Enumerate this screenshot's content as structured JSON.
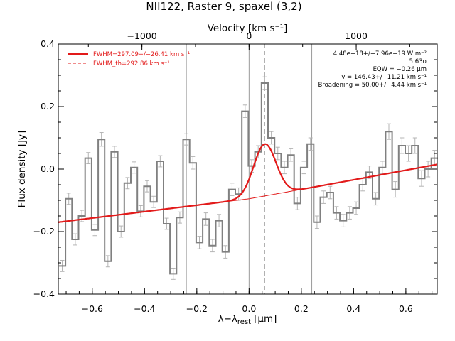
{
  "chart_data": {
    "type": "line",
    "title": "NII122, Raster 9, spaxel (3,2)",
    "xlabel": "λ−λ",
    "xlabel_sub": "rest",
    "xlabel_unit": "[μm]",
    "ylabel": "Flux density [Jy]",
    "top_axis_label": "Velocity [km s⁻¹]",
    "xlim": [
      -0.73,
      0.72
    ],
    "ylim": [
      -0.4,
      0.4
    ],
    "x_ticks": [
      -0.6,
      -0.4,
      -0.2,
      0.0,
      0.2,
      0.4,
      0.6
    ],
    "x_tick_labels": [
      "−0.6",
      "−0.4",
      "−0.2",
      "0.0",
      "0.2",
      "0.4",
      "0.6"
    ],
    "y_ticks": [
      -0.4,
      -0.2,
      0.0,
      0.2,
      0.4
    ],
    "y_tick_labels": [
      "−0.4",
      "−0.2",
      "0.0",
      "0.2",
      "0.4"
    ],
    "top_ticks": [
      -1000,
      0,
      1000
    ],
    "top_tick_labels": [
      "−1000",
      "0",
      "1000"
    ],
    "top_tick_positions_um": [
      -0.41,
      0.0,
      0.41
    ],
    "grey_vlines_um": [
      -0.24,
      0.0,
      0.24
    ],
    "dashed_vline_um": 0.06,
    "spectrum": {
      "x": [
        -0.715,
        -0.69,
        -0.665,
        -0.64,
        -0.615,
        -0.59,
        -0.565,
        -0.54,
        -0.515,
        -0.49,
        -0.465,
        -0.44,
        -0.415,
        -0.39,
        -0.365,
        -0.34,
        -0.315,
        -0.29,
        -0.265,
        -0.24,
        -0.215,
        -0.19,
        -0.165,
        -0.14,
        -0.115,
        -0.09,
        -0.065,
        -0.04,
        -0.015,
        0.01,
        0.035,
        0.06,
        0.085,
        0.11,
        0.135,
        0.16,
        0.185,
        0.21,
        0.235,
        0.26,
        0.285,
        0.31,
        0.335,
        0.36,
        0.385,
        0.41,
        0.435,
        0.46,
        0.485,
        0.51,
        0.535,
        0.56,
        0.585,
        0.61,
        0.635,
        0.66,
        0.685,
        0.71
      ],
      "y": [
        -0.31,
        -0.095,
        -0.225,
        -0.15,
        0.035,
        -0.195,
        0.095,
        -0.295,
        0.055,
        -0.2,
        -0.045,
        0.005,
        -0.135,
        -0.055,
        -0.105,
        0.025,
        -0.175,
        -0.335,
        -0.155,
        0.095,
        0.02,
        -0.235,
        -0.16,
        -0.245,
        -0.165,
        -0.265,
        -0.065,
        -0.08,
        0.185,
        0.01,
        0.055,
        0.275,
        0.1,
        0.05,
        0.005,
        0.045,
        -0.11,
        0.005,
        0.08,
        -0.17,
        -0.09,
        -0.075,
        -0.14,
        -0.165,
        -0.14,
        -0.125,
        -0.05,
        -0.01,
        -0.095,
        0.005,
        0.12,
        -0.065,
        0.075,
        0.05,
        0.075,
        -0.03,
        0.0,
        0.035
      ],
      "err": [
        0.018,
        0.018,
        0.018,
        0.018,
        0.018,
        0.018,
        0.022,
        0.018,
        0.018,
        0.018,
        0.018,
        0.018,
        0.018,
        0.018,
        0.018,
        0.018,
        0.018,
        0.018,
        0.018,
        0.018,
        0.02,
        0.02,
        0.02,
        0.02,
        0.02,
        0.02,
        0.02,
        0.02,
        0.02,
        0.02,
        0.02,
        0.02,
        0.02,
        0.02,
        0.02,
        0.02,
        0.02,
        0.02,
        0.02,
        0.02,
        0.02,
        0.02,
        0.02,
        0.02,
        0.02,
        0.02,
        0.02,
        0.02,
        0.02,
        0.02,
        0.025,
        0.025,
        0.025,
        0.025,
        0.025,
        0.025,
        0.025,
        0.025
      ]
    },
    "continuum": {
      "x": [
        -0.73,
        0.0,
        0.2,
        0.72
      ],
      "y": [
        -0.17,
        -0.095,
        -0.065,
        0.015
      ]
    },
    "gaussian": {
      "center": 0.06,
      "amplitude": 0.166,
      "sigma": 0.043
    },
    "legend": [
      "FWHM=297.09+/−26.41 km s⁻¹",
      "FWHM_th=292.86 km s⁻¹"
    ],
    "annotations": [
      "4.48e−18+/−7.96e−19 W m⁻²",
      "5.63σ",
      "EQW = −0.26 μm",
      "v = 146.43+/−11.21 km s⁻¹",
      "Broadening = 50.00+/−4.44 km s⁻¹"
    ],
    "colors": {
      "spectrum": "#808080",
      "fit": "#e21a1a",
      "errorbar": "#b4b4b4",
      "vline": "#9a9a9a"
    }
  }
}
